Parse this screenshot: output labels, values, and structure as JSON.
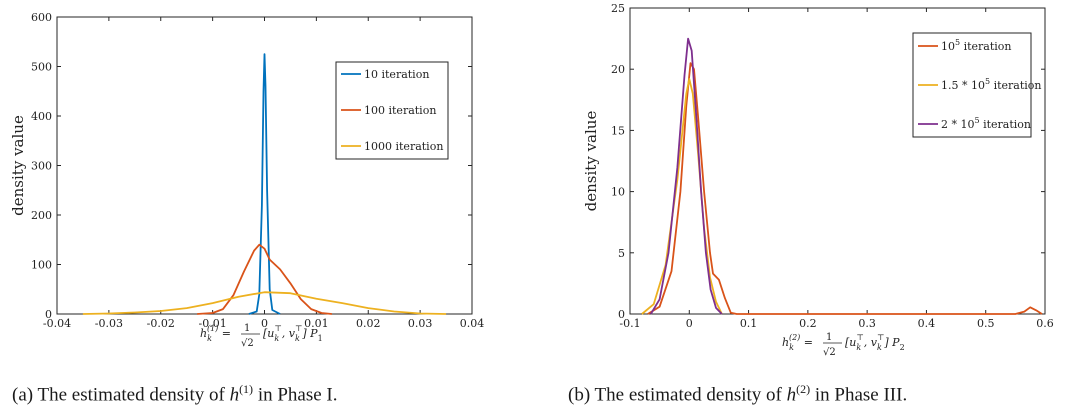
{
  "chart_data": [
    {
      "type": "line",
      "panel": "a",
      "xlim": [
        -0.04,
        0.04
      ],
      "ylim": [
        0,
        600
      ],
      "xticks": [
        "-0.04",
        "-0.03",
        "-0.02",
        "-0.01",
        "0",
        "0.01",
        "0.02",
        "0.03",
        "0.04"
      ],
      "xtick_values": [
        -0.04,
        -0.03,
        -0.02,
        -0.01,
        0,
        0.01,
        0.02,
        0.03,
        0.04
      ],
      "yticks": [
        "0",
        "100",
        "200",
        "300",
        "400",
        "500",
        "600"
      ],
      "ytick_values": [
        0,
        100,
        200,
        300,
        400,
        500,
        600
      ],
      "ylabel": "density value",
      "xlabel": "h_k^(1) = (1/√2)[u_k^⊤, v_k^⊤]P_1",
      "legend_position": "top-right",
      "series": [
        {
          "name": "10 iteration",
          "color": "#0072bd",
          "points": [
            [
              -0.003,
              0
            ],
            [
              -0.0015,
              5
            ],
            [
              -0.001,
              40
            ],
            [
              -0.0005,
              220
            ],
            [
              -0.0002,
              450
            ],
            [
              0,
              525
            ],
            [
              0.0002,
              460
            ],
            [
              0.0005,
              250
            ],
            [
              0.001,
              50
            ],
            [
              0.0015,
              8
            ],
            [
              0.003,
              0
            ]
          ]
        },
        {
          "name": "100 iteration",
          "color": "#d95319",
          "points": [
            [
              -0.013,
              0
            ],
            [
              -0.01,
              2
            ],
            [
              -0.008,
              10
            ],
            [
              -0.006,
              38
            ],
            [
              -0.004,
              85
            ],
            [
              -0.002,
              128
            ],
            [
              -0.001,
              140
            ],
            [
              0,
              132
            ],
            [
              0.001,
              110
            ],
            [
              0.003,
              90
            ],
            [
              0.005,
              62
            ],
            [
              0.007,
              30
            ],
            [
              0.009,
              10
            ],
            [
              0.011,
              2
            ],
            [
              0.013,
              0
            ]
          ]
        },
        {
          "name": "1000 iteration",
          "color": "#edb120",
          "points": [
            [
              -0.035,
              0
            ],
            [
              -0.03,
              1
            ],
            [
              -0.025,
              3
            ],
            [
              -0.02,
              6
            ],
            [
              -0.015,
              12
            ],
            [
              -0.01,
              22
            ],
            [
              -0.005,
              35
            ],
            [
              0,
              44
            ],
            [
              0.005,
              42
            ],
            [
              0.01,
              31
            ],
            [
              0.015,
              22
            ],
            [
              0.02,
              12
            ],
            [
              0.025,
              5
            ],
            [
              0.03,
              1
            ],
            [
              0.035,
              0
            ]
          ]
        }
      ]
    },
    {
      "type": "line",
      "panel": "b",
      "xlim": [
        -0.1,
        0.6
      ],
      "ylim": [
        0,
        25
      ],
      "xticks": [
        "-0.1",
        "0",
        "0.1",
        "0.2",
        "0.3",
        "0.4",
        "0.5",
        "0.6"
      ],
      "xtick_values": [
        -0.1,
        0,
        0.1,
        0.2,
        0.3,
        0.4,
        0.5,
        0.6
      ],
      "yticks": [
        "0",
        "5",
        "10",
        "15",
        "20",
        "25"
      ],
      "ytick_values": [
        0,
        5,
        10,
        15,
        20,
        25
      ],
      "ylabel": "density value",
      "xlabel": "h_k^(2) = (1/√2)[u_k^⊤, v_k^⊤]P_2",
      "legend_position": "top-right",
      "series": [
        {
          "name": "10^5 iteration",
          "color": "#d95319",
          "points": [
            [
              -0.07,
              0
            ],
            [
              -0.05,
              0.6
            ],
            [
              -0.03,
              3.5
            ],
            [
              -0.015,
              10
            ],
            [
              -0.005,
              17
            ],
            [
              0.002,
              20.5
            ],
            [
              0.008,
              20
            ],
            [
              0.015,
              16
            ],
            [
              0.025,
              10
            ],
            [
              0.035,
              5
            ],
            [
              0.04,
              3.3
            ],
            [
              0.05,
              2.8
            ],
            [
              0.06,
              1.3
            ],
            [
              0.07,
              0.1
            ],
            [
              0.08,
              0
            ],
            [
              0.55,
              0
            ],
            [
              0.565,
              0.2
            ],
            [
              0.575,
              0.55
            ],
            [
              0.585,
              0.3
            ],
            [
              0.595,
              0
            ]
          ]
        },
        {
          "name": "1.5*10^5 iteration",
          "color": "#edb120",
          "points": [
            [
              -0.08,
              0
            ],
            [
              -0.06,
              0.8
            ],
            [
              -0.04,
              4
            ],
            [
              -0.02,
              11
            ],
            [
              -0.005,
              18
            ],
            [
              0,
              19.2
            ],
            [
              0.006,
              18
            ],
            [
              0.015,
              13
            ],
            [
              0.025,
              7
            ],
            [
              0.035,
              3
            ],
            [
              0.045,
              1
            ],
            [
              0.055,
              0
            ]
          ]
        },
        {
          "name": "2*10^5 iteration",
          "color": "#7e2f8e",
          "points": [
            [
              -0.065,
              0
            ],
            [
              -0.05,
              1.2
            ],
            [
              -0.035,
              5
            ],
            [
              -0.02,
              12
            ],
            [
              -0.008,
              19.5
            ],
            [
              -0.002,
              22.5
            ],
            [
              0.004,
              21.5
            ],
            [
              0.012,
              16
            ],
            [
              0.02,
              10
            ],
            [
              0.028,
              5
            ],
            [
              0.036,
              2
            ],
            [
              0.045,
              0.5
            ],
            [
              0.055,
              0
            ]
          ]
        }
      ]
    }
  ],
  "captions": {
    "a_prefix": "(a)  The estimated density of ",
    "a_var": "h",
    "a_sup": "(1)",
    "a_suffix": " in Phase I.",
    "b_prefix": "(b)  The estimated density of ",
    "b_var": "h",
    "b_sup": "(2)",
    "b_suffix": " in Phase III."
  }
}
